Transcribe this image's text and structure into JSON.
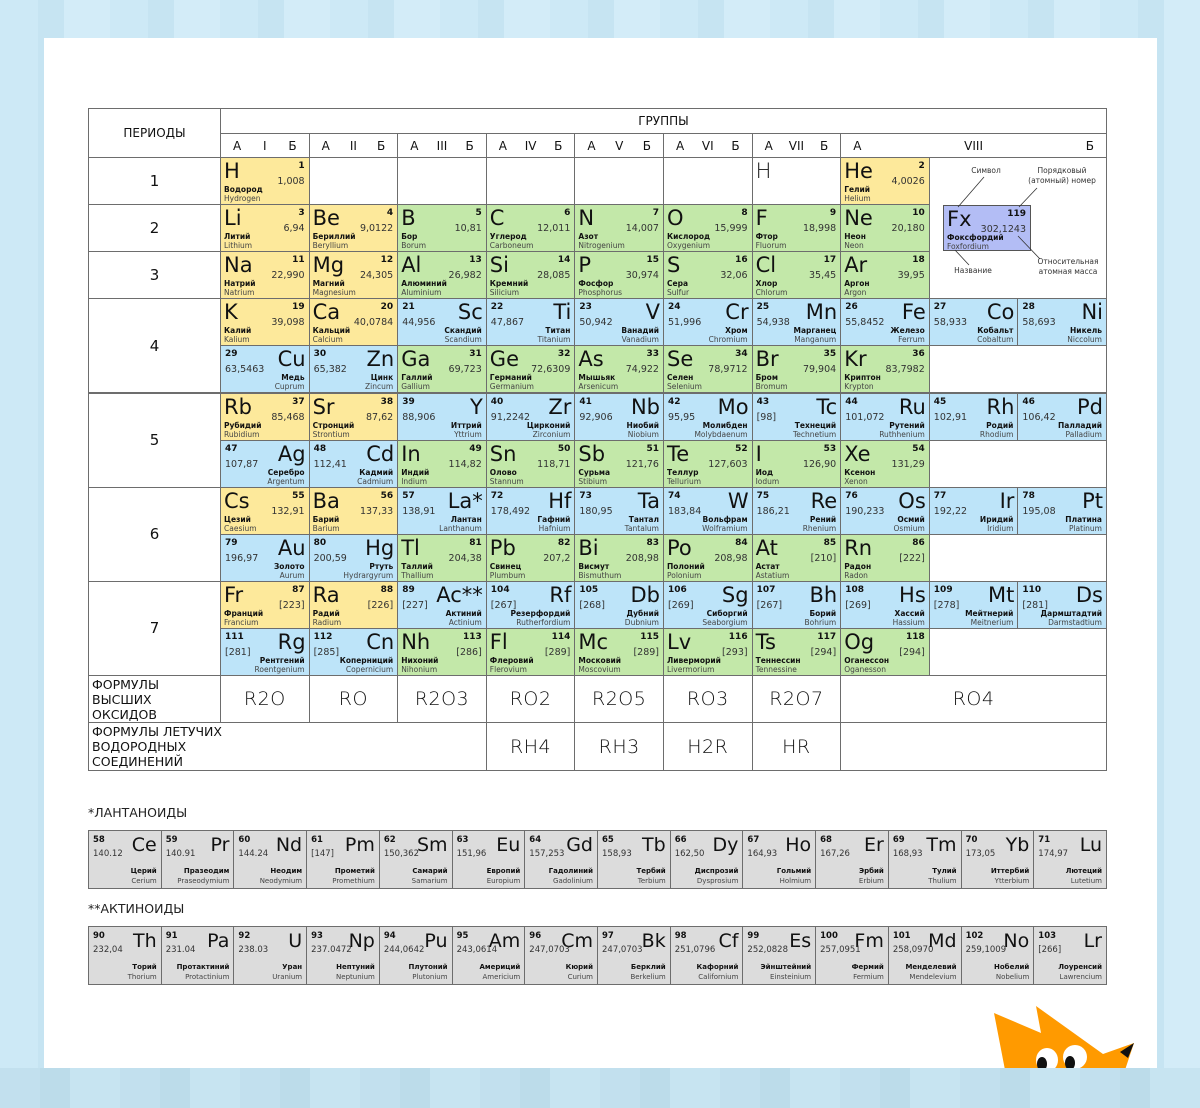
{
  "header": {
    "periods": "ПЕРИОДЫ",
    "groups": "ГРУППЫ",
    "subgroups": [
      [
        "А",
        "I",
        "Б"
      ],
      [
        "А",
        "II",
        "Б"
      ],
      [
        "А",
        "III",
        "Б"
      ],
      [
        "А",
        "IV",
        "Б"
      ],
      [
        "А",
        "V",
        "Б"
      ],
      [
        "А",
        "VI",
        "Б"
      ],
      [
        "А",
        "VII",
        "Б"
      ],
      [
        "А",
        "VIII",
        "Б"
      ]
    ]
  },
  "periods": [
    "1",
    "2",
    "3",
    "4",
    "5",
    "6",
    "7"
  ],
  "colors": {
    "s": "#fde99b",
    "p": "#c3e8a9",
    "d": "#bde4f9",
    "f": "#dcdcdc",
    "legend": "#b3bdf5",
    "fox": "#ff9a00"
  },
  "ghost_h": "H",
  "rows": [
    [
      [
        "H",
        "1",
        "1,008",
        "Водород",
        "Hydrogen",
        "s"
      ],
      null,
      null,
      null,
      null,
      null,
      "ghost",
      [
        "He",
        "2",
        "4,0026",
        "Гелий",
        "Helium",
        "s"
      ]
    ],
    [
      [
        "Li",
        "3",
        "6,94",
        "Литий",
        "Lithium",
        "s"
      ],
      [
        "Be",
        "4",
        "9,0122",
        "Бериллий",
        "Beryllium",
        "s"
      ],
      [
        "B",
        "5",
        "10,81",
        "Бор",
        "Borum",
        "p"
      ],
      [
        "C",
        "6",
        "12,011",
        "Углерод",
        "Carboneum",
        "p"
      ],
      [
        "N",
        "7",
        "14,007",
        "Азот",
        "Nitrogenium",
        "p"
      ],
      [
        "O",
        "8",
        "15,999",
        "Кислород",
        "Oxygenium",
        "p"
      ],
      [
        "F",
        "9",
        "18,998",
        "Фтор",
        "Fluorum",
        "p"
      ],
      [
        "Ne",
        "10",
        "20,180",
        "Неон",
        "Neon",
        "p"
      ]
    ],
    [
      [
        "Na",
        "11",
        "22,990",
        "Натрий",
        "Natrium",
        "s"
      ],
      [
        "Mg",
        "12",
        "24,305",
        "Магний",
        "Magnesium",
        "s"
      ],
      [
        "Al",
        "13",
        "26,982",
        "Алюминий",
        "Aluminium",
        "p"
      ],
      [
        "Si",
        "14",
        "28,085",
        "Кремний",
        "Silicium",
        "p"
      ],
      [
        "P",
        "15",
        "30,974",
        "Фосфор",
        "Phosphorus",
        "p"
      ],
      [
        "S",
        "16",
        "32,06",
        "Сера",
        "Sulfur",
        "p"
      ],
      [
        "Cl",
        "17",
        "35,45",
        "Хлор",
        "Chlorum",
        "p"
      ],
      [
        "Ar",
        "18",
        "39,95",
        "Аргон",
        "Argon",
        "p"
      ]
    ],
    [
      [
        "K",
        "19",
        "39,098",
        "Калий",
        "Kalium",
        "s"
      ],
      [
        "Ca",
        "20",
        "40,0784",
        "Кальций",
        "Calcium",
        "s"
      ],
      [
        "Sc",
        "21",
        "44,956",
        "Скандий",
        "Scandium",
        "d"
      ],
      [
        "Ti",
        "22",
        "47,867",
        "Титан",
        "Titanium",
        "d"
      ],
      [
        "V",
        "23",
        "50,942",
        "Ванадий",
        "Vanadium",
        "d"
      ],
      [
        "Cr",
        "24",
        "51,996",
        "Хром",
        "Chromium",
        "d"
      ],
      [
        "Mn",
        "25",
        "54,938",
        "Марганец",
        "Manganum",
        "d"
      ],
      [
        "Fe",
        "26",
        "55,8452",
        "Железо",
        "Ferrum",
        "d"
      ],
      [
        "Co",
        "27",
        "58,933",
        "Кобальт",
        "Cobaltum",
        "d"
      ],
      [
        "Ni",
        "28",
        "58,693",
        "Никель",
        "Niccolum",
        "d"
      ]
    ],
    [
      [
        "Cu",
        "29",
        "63,5463",
        "Медь",
        "Cuprum",
        "d"
      ],
      [
        "Zn",
        "30",
        "65,382",
        "Цинк",
        "Zincum",
        "d"
      ],
      [
        "Ga",
        "31",
        "69,723",
        "Галлий",
        "Gallium",
        "p"
      ],
      [
        "Ge",
        "32",
        "72,6309",
        "Германий",
        "Germanium",
        "p"
      ],
      [
        "As",
        "33",
        "74,922",
        "Мышьяк",
        "Arsenicum",
        "p"
      ],
      [
        "Se",
        "34",
        "78,9712",
        "Селен",
        "Selenium",
        "p"
      ],
      [
        "Br",
        "35",
        "79,904",
        "Бром",
        "Bromum",
        "p"
      ],
      [
        "Kr",
        "36",
        "83,7982",
        "Криптон",
        "Krypton",
        "p"
      ]
    ],
    [
      [
        "Rb",
        "37",
        "85,468",
        "Рубидий",
        "Rubidium",
        "s"
      ],
      [
        "Sr",
        "38",
        "87,62",
        "Стронций",
        "Strontium",
        "s"
      ],
      [
        "Y",
        "39",
        "88,906",
        "Иттрий",
        "Yttrium",
        "d"
      ],
      [
        "Zr",
        "40",
        "91,2242",
        "Цирконий",
        "Zirconium",
        "d"
      ],
      [
        "Nb",
        "41",
        "92,906",
        "Ниобий",
        "Niobium",
        "d"
      ],
      [
        "Mo",
        "42",
        "95,95",
        "Молибден",
        "Molybdaenum",
        "d"
      ],
      [
        "Tc",
        "43",
        "[98]",
        "Технеций",
        "Technetium",
        "d"
      ],
      [
        "Ru",
        "44",
        "101,072",
        "Рутений",
        "Ruthhenium",
        "d"
      ],
      [
        "Rh",
        "45",
        "102,91",
        "Родий",
        "Rhodium",
        "d"
      ],
      [
        "Pd",
        "46",
        "106,42",
        "Палладий",
        "Palladium",
        "d"
      ]
    ],
    [
      [
        "Ag",
        "47",
        "107,87",
        "Серебро",
        "Argentum",
        "d"
      ],
      [
        "Cd",
        "48",
        "112,41",
        "Кадмий",
        "Cadmium",
        "d"
      ],
      [
        "In",
        "49",
        "114,82",
        "Индий",
        "Indium",
        "p"
      ],
      [
        "Sn",
        "50",
        "118,71",
        "Олово",
        "Stannum",
        "p"
      ],
      [
        "Sb",
        "51",
        "121,76",
        "Сурьма",
        "Stibium",
        "p"
      ],
      [
        "Te",
        "52",
        "127,603",
        "Теллур",
        "Tellurium",
        "p"
      ],
      [
        "I",
        "53",
        "126,90",
        "Иод",
        "Iodum",
        "p"
      ],
      [
        "Xe",
        "54",
        "131,29",
        "Ксенон",
        "Xenon",
        "p"
      ]
    ],
    [
      [
        "Cs",
        "55",
        "132,91",
        "Цезий",
        "Caesium",
        "s"
      ],
      [
        "Ba",
        "56",
        "137,33",
        "Барий",
        "Barium",
        "s"
      ],
      [
        "La*",
        "57",
        "138,91",
        "Лантан",
        "Lanthanum",
        "d"
      ],
      [
        "Hf",
        "72",
        "178,492",
        "Гафний",
        "Hafnium",
        "d"
      ],
      [
        "Ta",
        "73",
        "180,95",
        "Тантал",
        "Tantalum",
        "d"
      ],
      [
        "W",
        "74",
        "183,84",
        "Вольфрам",
        "Wolframium",
        "d"
      ],
      [
        "Re",
        "75",
        "186,21",
        "Рений",
        "Rhenium",
        "d"
      ],
      [
        "Os",
        "76",
        "190,233",
        "Осмий",
        "Osmium",
        "d"
      ],
      [
        "Ir",
        "77",
        "192,22",
        "Иридий",
        "Iridium",
        "d"
      ],
      [
        "Pt",
        "78",
        "195,08",
        "Платина",
        "Platinum",
        "d"
      ]
    ],
    [
      [
        "Au",
        "79",
        "196,97",
        "Золото",
        "Aurum",
        "d"
      ],
      [
        "Hg",
        "80",
        "200,59",
        "Ртуть",
        "Hydrargyrum",
        "d"
      ],
      [
        "Tl",
        "81",
        "204,38",
        "Таллий",
        "Thallium",
        "p"
      ],
      [
        "Pb",
        "82",
        "207,2",
        "Свинец",
        "Plumbum",
        "p"
      ],
      [
        "Bi",
        "83",
        "208,98",
        "Висмут",
        "Bismuthum",
        "p"
      ],
      [
        "Po",
        "84",
        "208,98",
        "Полоний",
        "Polonium",
        "p"
      ],
      [
        "At",
        "85",
        "[210]",
        "Астат",
        "Astatium",
        "p"
      ],
      [
        "Rn",
        "86",
        "[222]",
        "Радон",
        "Radon",
        "p"
      ]
    ],
    [
      [
        "Fr",
        "87",
        "[223]",
        "Франций",
        "Francium",
        "s"
      ],
      [
        "Ra",
        "88",
        "[226]",
        "Радий",
        "Radium",
        "s"
      ],
      [
        "Ac**",
        "89",
        "[227]",
        "Актиний",
        "Actinium",
        "d"
      ],
      [
        "Rf",
        "104",
        "[267]",
        "Резерфордий",
        "Rutherfordium",
        "d"
      ],
      [
        "Db",
        "105",
        "[268]",
        "Дубний",
        "Dubnium",
        "d"
      ],
      [
        "Sg",
        "106",
        "[269]",
        "Сиборгий",
        "Seaborgium",
        "d"
      ],
      [
        "Bh",
        "107",
        "[267]",
        "Борий",
        "Bohrium",
        "d"
      ],
      [
        "Hs",
        "108",
        "[269]",
        "Хассий",
        "Hassium",
        "d"
      ],
      [
        "Mt",
        "109",
        "[278]",
        "Мейтнерий",
        "Meitnerium",
        "d"
      ],
      [
        "Ds",
        "110",
        "[281]",
        "Дармштадтий",
        "Darmstadtium",
        "d"
      ]
    ],
    [
      [
        "Rg",
        "111",
        "[281]",
        "Рентгений",
        "Roentgenium",
        "d"
      ],
      [
        "Cn",
        "112",
        "[285]",
        "Коперниций",
        "Copernicium",
        "d"
      ],
      [
        "Nh",
        "113",
        "[286]",
        "Нихоний",
        "Nihonium",
        "p"
      ],
      [
        "Fl",
        "114",
        "[289]",
        "Флеровий",
        "Flerovium",
        "p"
      ],
      [
        "Mc",
        "115",
        "[289]",
        "Московий",
        "Moscovium",
        "p"
      ],
      [
        "Lv",
        "116",
        "[293]",
        "Ливерморий",
        "Livermorium",
        "p"
      ],
      [
        "Ts",
        "117",
        "[294]",
        "Теннессин",
        "Tennessine",
        "p"
      ],
      [
        "Og",
        "118",
        "[294]",
        "Оганессон",
        "Oganesson",
        "p"
      ]
    ]
  ],
  "legend": {
    "symbol": "Fx",
    "number": "119",
    "mass": "302,1243",
    "ru": "Фоксфордий",
    "la": "Foxfordium",
    "symbol_label": "Символ",
    "number_label": "Порядковый (атомный) номер",
    "name_label": "Название",
    "mass_label": "Относительная атомная масса"
  },
  "oxides": {
    "label": "ФОРМУЛЫ ВЫСШИХ ОКСИДОВ",
    "formulas": [
      "R2O",
      "RO",
      "R2O3",
      "RO2",
      "R2O5",
      "RO3",
      "R2O7",
      "RO4"
    ]
  },
  "hydrides": {
    "label": "ФОРМУЛЫ ЛЕТУЧИХ ВОДОРОДНЫХ СОЕДИНЕНИЙ",
    "formulas": [
      "RH4",
      "RH3",
      "H2R",
      "HR"
    ]
  },
  "lanthanides": {
    "title": "*ЛАНТАНОИДЫ",
    "items": [
      [
        "Ce",
        "58",
        "140.12",
        "Церий",
        "Cerium"
      ],
      [
        "Pr",
        "59",
        "140.91",
        "Празеодим",
        "Praseodymium"
      ],
      [
        "Nd",
        "60",
        "144.24",
        "Неодим",
        "Neodymium"
      ],
      [
        "Pm",
        "61",
        "[147]",
        "Прометий",
        "Promethium"
      ],
      [
        "Sm",
        "62",
        "150,362",
        "Самарий",
        "Samarium"
      ],
      [
        "Eu",
        "63",
        "151,96",
        "Европий",
        "Europium"
      ],
      [
        "Gd",
        "64",
        "157,253",
        "Гадолиний",
        "Gadolinium"
      ],
      [
        "Tb",
        "65",
        "158,93",
        "Тербий",
        "Terbium"
      ],
      [
        "Dy",
        "66",
        "162,50",
        "Диспрозий",
        "Dysprosium"
      ],
      [
        "Ho",
        "67",
        "164,93",
        "Гольмий",
        "Holmium"
      ],
      [
        "Er",
        "68",
        "167,26",
        "Эрбий",
        "Erbium"
      ],
      [
        "Tm",
        "69",
        "168,93",
        "Тулий",
        "Thulium"
      ],
      [
        "Yb",
        "70",
        "173,05",
        "Иттербий",
        "Ytterbium"
      ],
      [
        "Lu",
        "71",
        "174,97",
        "Лютеций",
        "Lutetium"
      ]
    ]
  },
  "actinides": {
    "title": "**АКТИНОИДЫ",
    "items": [
      [
        "Th",
        "90",
        "232,04",
        "Торий",
        "Thorium"
      ],
      [
        "Pa",
        "91",
        "231.04",
        "Протактиний",
        "Protactinium"
      ],
      [
        "U",
        "92",
        "238.03",
        "Уран",
        "Uranium"
      ],
      [
        "Np",
        "93",
        "237.0472",
        "Нептуний",
        "Neptunium"
      ],
      [
        "Pu",
        "94",
        "244,0642",
        "Плутоний",
        "Plutonium"
      ],
      [
        "Am",
        "95",
        "243,0614",
        "Америций",
        "Americium"
      ],
      [
        "Cm",
        "96",
        "247,0703",
        "Кюрий",
        "Curium"
      ],
      [
        "Bk",
        "97",
        "247,0703",
        "Берклий",
        "Berkelium"
      ],
      [
        "Cf",
        "98",
        "251,0796",
        "Кафорний",
        "Californium"
      ],
      [
        "Es",
        "99",
        "252,0828",
        "Эйнштейний",
        "Einsteinium"
      ],
      [
        "Fm",
        "100",
        "257,0951",
        "Фермий",
        "Fermium"
      ],
      [
        "Md",
        "101",
        "258,0970",
        "Менделевий",
        "Mendelevium"
      ],
      [
        "No",
        "102",
        "259,1009",
        "Нобелий",
        "Nobelium"
      ],
      [
        "Lr",
        "103",
        "[266]",
        "Лоуренсий",
        "Lawrencium"
      ]
    ]
  }
}
